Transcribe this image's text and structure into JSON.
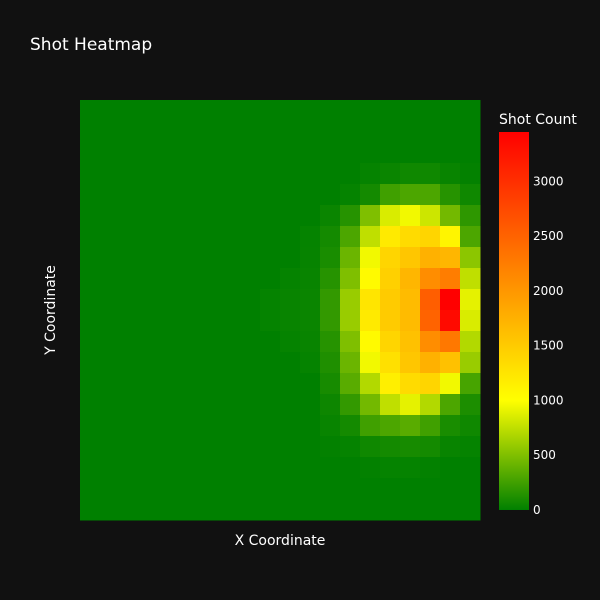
{
  "chart_data": {
    "type": "heatmap",
    "title": "Shot Heatmap",
    "xlabel": "X Coordinate",
    "ylabel": "Y Coordinate",
    "colorbar": {
      "title": "Shot Count",
      "range": [
        0,
        3450
      ],
      "ticks": [
        0,
        500,
        1000,
        1500,
        2000,
        2500,
        3000
      ],
      "tick_labels": [
        "0",
        "500",
        "1000",
        "1500",
        "2000",
        "2500",
        "3000"
      ],
      "colorscale": [
        [
          0,
          "#008000"
        ],
        [
          0.29,
          "#ffff00"
        ],
        [
          1,
          "#ff0000"
        ]
      ]
    },
    "grid_size": [
      20,
      20
    ],
    "values": [
      [
        0,
        0,
        0,
        0,
        0,
        0,
        0,
        0,
        0,
        0,
        0,
        0,
        0,
        0,
        0,
        0,
        0,
        0,
        0,
        0
      ],
      [
        0,
        0,
        0,
        0,
        0,
        0,
        0,
        0,
        0,
        0,
        0,
        0,
        0,
        0,
        0,
        0,
        0,
        0,
        0,
        0
      ],
      [
        0,
        0,
        0,
        0,
        0,
        0,
        0,
        0,
        0,
        0,
        0,
        0,
        0,
        0,
        0,
        0,
        0,
        0,
        0,
        0
      ],
      [
        0,
        0,
        0,
        0,
        0,
        0,
        0,
        0,
        0,
        0,
        0,
        0,
        0,
        0,
        20,
        40,
        60,
        60,
        30,
        10
      ],
      [
        0,
        0,
        0,
        0,
        0,
        0,
        0,
        0,
        0,
        0,
        0,
        0,
        0,
        20,
        80,
        250,
        300,
        300,
        150,
        60
      ],
      [
        0,
        0,
        0,
        0,
        0,
        0,
        0,
        0,
        0,
        0,
        0,
        0,
        40,
        150,
        500,
        850,
        950,
        800,
        450,
        180
      ],
      [
        0,
        0,
        0,
        0,
        0,
        0,
        0,
        0,
        0,
        0,
        0,
        20,
        80,
        300,
        750,
        1200,
        1350,
        1400,
        1100,
        300
      ],
      [
        0,
        0,
        0,
        0,
        0,
        0,
        0,
        0,
        0,
        0,
        0,
        25,
        100,
        420,
        950,
        1400,
        1550,
        1750,
        1700,
        550
      ],
      [
        0,
        0,
        0,
        0,
        0,
        0,
        0,
        0,
        0,
        0,
        20,
        30,
        150,
        500,
        1050,
        1450,
        1700,
        2100,
        2250,
        750
      ],
      [
        0,
        0,
        0,
        0,
        0,
        0,
        0,
        0,
        0,
        20,
        30,
        40,
        200,
        600,
        1250,
        1500,
        1650,
        2550,
        3450,
        900
      ],
      [
        0,
        0,
        0,
        0,
        0,
        0,
        0,
        0,
        0,
        20,
        30,
        40,
        200,
        600,
        1200,
        1500,
        1650,
        2500,
        3350,
        850
      ],
      [
        0,
        0,
        0,
        0,
        0,
        0,
        0,
        0,
        0,
        0,
        20,
        30,
        150,
        500,
        1050,
        1400,
        1600,
        2100,
        2300,
        700
      ],
      [
        0,
        0,
        0,
        0,
        0,
        0,
        0,
        0,
        0,
        0,
        0,
        20,
        120,
        420,
        950,
        1300,
        1550,
        1750,
        1600,
        600
      ],
      [
        0,
        0,
        0,
        0,
        0,
        0,
        0,
        0,
        0,
        0,
        0,
        0,
        90,
        350,
        700,
        1150,
        1350,
        1400,
        950,
        280
      ],
      [
        0,
        0,
        0,
        0,
        0,
        0,
        0,
        0,
        0,
        0,
        0,
        0,
        50,
        200,
        450,
        750,
        900,
        700,
        300,
        110
      ],
      [
        0,
        0,
        0,
        0,
        0,
        0,
        0,
        0,
        0,
        0,
        0,
        0,
        30,
        80,
        250,
        300,
        350,
        250,
        100,
        60
      ],
      [
        0,
        0,
        0,
        0,
        0,
        0,
        0,
        0,
        0,
        0,
        0,
        0,
        10,
        20,
        60,
        80,
        90,
        80,
        30,
        20
      ],
      [
        0,
        0,
        0,
        0,
        0,
        0,
        0,
        0,
        0,
        0,
        0,
        0,
        0,
        0,
        10,
        20,
        20,
        10,
        0,
        0
      ],
      [
        0,
        0,
        0,
        0,
        0,
        0,
        0,
        0,
        0,
        0,
        0,
        0,
        0,
        0,
        0,
        0,
        0,
        0,
        0,
        0
      ],
      [
        0,
        0,
        0,
        0,
        0,
        0,
        0,
        0,
        0,
        0,
        0,
        0,
        0,
        0,
        0,
        0,
        0,
        0,
        0,
        0
      ]
    ]
  }
}
